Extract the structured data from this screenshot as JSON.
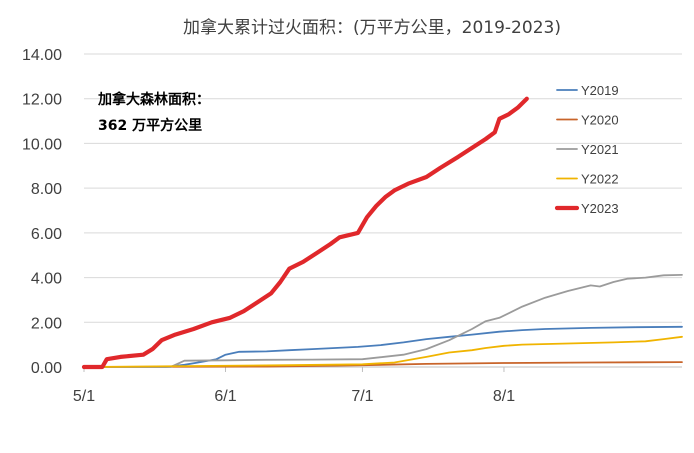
{
  "chart_data": {
    "type": "line",
    "title": "加拿大累计过火面积：(万平方公里，2019-2023)",
    "xlabel": "",
    "ylabel": "",
    "ylim": [
      0,
      14
    ],
    "yticks": [
      "0.00",
      "2.00",
      "4.00",
      "6.00",
      "8.00",
      "10.00",
      "12.00",
      "14.00"
    ],
    "xlim": [
      "2023-05-01",
      "2023-09-09"
    ],
    "xticks": [
      {
        "date": "2023-05-01",
        "label": "5/1"
      },
      {
        "date": "2023-06-01",
        "label": "6/1"
      },
      {
        "date": "2023-07-01",
        "label": "7/1"
      },
      {
        "date": "2023-08-01",
        "label": "8/1"
      }
    ],
    "grid": "horizontal",
    "legend_position": "right",
    "annotation": {
      "line1": "加拿大森林面积：",
      "line2": "362 万平方公里"
    },
    "series": [
      {
        "name": "Y2019",
        "color": "#4a7ebb",
        "width": 1.8,
        "points": [
          [
            "2023-05-01",
            0
          ],
          [
            "2023-05-19",
            0
          ],
          [
            "2023-05-23",
            0.1
          ],
          [
            "2023-05-26",
            0.2
          ],
          [
            "2023-05-30",
            0.35
          ],
          [
            "2023-06-01",
            0.55
          ],
          [
            "2023-06-04",
            0.68
          ],
          [
            "2023-06-10",
            0.7
          ],
          [
            "2023-06-15",
            0.75
          ],
          [
            "2023-06-20",
            0.8
          ],
          [
            "2023-06-25",
            0.85
          ],
          [
            "2023-06-30",
            0.9
          ],
          [
            "2023-07-05",
            0.98
          ],
          [
            "2023-07-10",
            1.1
          ],
          [
            "2023-07-15",
            1.25
          ],
          [
            "2023-07-20",
            1.35
          ],
          [
            "2023-07-25",
            1.45
          ],
          [
            "2023-07-31",
            1.58
          ],
          [
            "2023-08-05",
            1.65
          ],
          [
            "2023-08-10",
            1.7
          ],
          [
            "2023-08-20",
            1.75
          ],
          [
            "2023-08-30",
            1.78
          ],
          [
            "2023-09-09",
            1.8
          ]
        ]
      },
      {
        "name": "Y2020",
        "color": "#c8642a",
        "width": 1.8,
        "points": [
          [
            "2023-05-01",
            0
          ],
          [
            "2023-06-10",
            0.02
          ],
          [
            "2023-07-01",
            0.08
          ],
          [
            "2023-07-15",
            0.14
          ],
          [
            "2023-08-01",
            0.18
          ],
          [
            "2023-08-20",
            0.2
          ],
          [
            "2023-09-09",
            0.22
          ]
        ]
      },
      {
        "name": "Y2021",
        "color": "#9b9b9b",
        "width": 1.8,
        "points": [
          [
            "2023-05-01",
            0
          ],
          [
            "2023-05-20",
            0
          ],
          [
            "2023-05-23",
            0.28
          ],
          [
            "2023-06-01",
            0.3
          ],
          [
            "2023-06-10",
            0.32
          ],
          [
            "2023-06-20",
            0.33
          ],
          [
            "2023-07-01",
            0.35
          ],
          [
            "2023-07-10",
            0.55
          ],
          [
            "2023-07-15",
            0.8
          ],
          [
            "2023-07-20",
            1.2
          ],
          [
            "2023-07-25",
            1.7
          ],
          [
            "2023-07-28",
            2.05
          ],
          [
            "2023-07-31",
            2.2
          ],
          [
            "2023-08-05",
            2.7
          ],
          [
            "2023-08-10",
            3.1
          ],
          [
            "2023-08-15",
            3.4
          ],
          [
            "2023-08-20",
            3.65
          ],
          [
            "2023-08-22",
            3.6
          ],
          [
            "2023-08-25",
            3.8
          ],
          [
            "2023-08-28",
            3.95
          ],
          [
            "2023-09-01",
            4.0
          ],
          [
            "2023-09-05",
            4.1
          ],
          [
            "2023-09-09",
            4.12
          ]
        ]
      },
      {
        "name": "Y2022",
        "color": "#f0b400",
        "width": 1.8,
        "points": [
          [
            "2023-05-01",
            0
          ],
          [
            "2023-06-15",
            0.08
          ],
          [
            "2023-07-01",
            0.12
          ],
          [
            "2023-07-08",
            0.2
          ],
          [
            "2023-07-15",
            0.45
          ],
          [
            "2023-07-20",
            0.65
          ],
          [
            "2023-07-25",
            0.75
          ],
          [
            "2023-07-28",
            0.85
          ],
          [
            "2023-08-01",
            0.95
          ],
          [
            "2023-08-05",
            1.0
          ],
          [
            "2023-08-15",
            1.05
          ],
          [
            "2023-08-25",
            1.1
          ],
          [
            "2023-09-01",
            1.15
          ],
          [
            "2023-09-05",
            1.25
          ],
          [
            "2023-09-09",
            1.35
          ]
        ]
      },
      {
        "name": "Y2023",
        "color": "#e0282b",
        "width": 4.2,
        "points": [
          [
            "2023-05-01",
            0
          ],
          [
            "2023-05-05",
            0
          ],
          [
            "2023-05-06",
            0.35
          ],
          [
            "2023-05-09",
            0.45
          ],
          [
            "2023-05-14",
            0.55
          ],
          [
            "2023-05-16",
            0.8
          ],
          [
            "2023-05-18",
            1.2
          ],
          [
            "2023-05-21",
            1.45
          ],
          [
            "2023-05-25",
            1.7
          ],
          [
            "2023-05-29",
            2.0
          ],
          [
            "2023-06-02",
            2.2
          ],
          [
            "2023-06-05",
            2.5
          ],
          [
            "2023-06-08",
            2.9
          ],
          [
            "2023-06-11",
            3.3
          ],
          [
            "2023-06-13",
            3.8
          ],
          [
            "2023-06-15",
            4.4
          ],
          [
            "2023-06-18",
            4.7
          ],
          [
            "2023-06-21",
            5.1
          ],
          [
            "2023-06-24",
            5.5
          ],
          [
            "2023-06-26",
            5.8
          ],
          [
            "2023-06-30",
            6.0
          ],
          [
            "2023-07-02",
            6.7
          ],
          [
            "2023-07-04",
            7.2
          ],
          [
            "2023-07-06",
            7.6
          ],
          [
            "2023-07-08",
            7.9
          ],
          [
            "2023-07-11",
            8.2
          ],
          [
            "2023-07-15",
            8.5
          ],
          [
            "2023-07-18",
            8.9
          ],
          [
            "2023-07-22",
            9.4
          ],
          [
            "2023-07-25",
            9.8
          ],
          [
            "2023-07-28",
            10.2
          ],
          [
            "2023-07-30",
            10.5
          ],
          [
            "2023-07-31",
            11.1
          ],
          [
            "2023-08-02",
            11.3
          ],
          [
            "2023-08-04",
            11.6
          ],
          [
            "2023-08-06",
            12.0
          ]
        ]
      }
    ]
  }
}
